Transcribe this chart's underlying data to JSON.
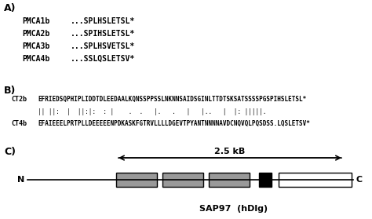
{
  "panel_A_label": "A)",
  "panel_B_label": "B)",
  "panel_C_label": "C)",
  "pmca_sequences": [
    {
      "name": "PMCA1b",
      "seq": "...SPLHSLETSL*"
    },
    {
      "name": "PMCA2b",
      "seq": "...SPIHSLETSL*"
    },
    {
      "name": "PMCA3b",
      "seq": "...SPLHSVETSL*"
    },
    {
      "name": "PMCA4b",
      "seq": "...SSLQSLETSV*"
    }
  ],
  "ct2b_seq": "EFRIEDSQPHIPLIDDTDLEEDAALKQNSSPPSSLNKNNSAIDSGINLTTDTSKSATSSSSPGSPIHSLETSL*",
  "alignment": "|| ||:  |  ||:|:  : |    .  .   |.   .   |   |..   |  |: |||||.",
  "ct4b_seq": "EFAIEEELPRTPLLDEEEEENPDKASKFGTRVLLLLDGEVTPYANTNNNNAVDCNQVQLPQSDSS.LQSLETSV*",
  "label_ct2b": "CT2b",
  "label_ct4b": "CT4b",
  "scale_label": "2.5 kB",
  "sap97_label": "SAP97  (hDlg)",
  "n_label": "N",
  "c_label": "C",
  "bg_color": "#ffffff",
  "box_gray": "#999999",
  "box_black": "#000000",
  "box_white": "#ffffff"
}
